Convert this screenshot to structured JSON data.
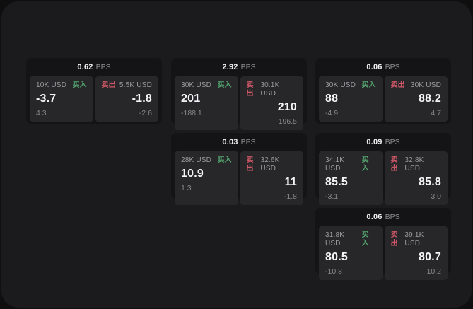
{
  "labels": {
    "bps_unit": "BPS",
    "buy": "买入",
    "sell": "卖出"
  },
  "colors": {
    "buy_green": "#54a56f",
    "sell_red": "#cd5766",
    "window_bg": "#1b1b1d",
    "card_bg": "#141416",
    "panel_bg": "#27272a"
  },
  "cards": [
    {
      "bps": "0.62",
      "buy": {
        "amount": "10K USD",
        "value": "-3.7",
        "sub": "4.3"
      },
      "sell": {
        "amount": "5.5K USD",
        "value": "-1.8",
        "sub": "-2.6"
      }
    },
    {
      "bps": "2.92",
      "buy": {
        "amount": "30K USD",
        "value": "201",
        "sub": "-188.1"
      },
      "sell": {
        "amount": "30.1K USD",
        "value": "210",
        "sub": "196.5"
      }
    },
    {
      "bps": "0.06",
      "buy": {
        "amount": "30K USD",
        "value": "88",
        "sub": "-4.9"
      },
      "sell": {
        "amount": "30K USD",
        "value": "88.2",
        "sub": "4.7"
      }
    },
    {
      "bps": "0.03",
      "buy": {
        "amount": "28K USD",
        "value": "10.9",
        "sub": "1.3"
      },
      "sell": {
        "amount": "32.6K USD",
        "value": "11",
        "sub": "-1.8"
      }
    },
    {
      "bps": "0.09",
      "buy": {
        "amount": "34.1K USD",
        "value": "85.5",
        "sub": "-3.1"
      },
      "sell": {
        "amount": "32.8K USD",
        "value": "85.8",
        "sub": "3.0"
      }
    },
    {
      "bps": "0.06",
      "buy": {
        "amount": "31.8K USD",
        "value": "80.5",
        "sub": "-10.8"
      },
      "sell": {
        "amount": "39.1K USD",
        "value": "80.7",
        "sub": "10.2"
      }
    }
  ]
}
